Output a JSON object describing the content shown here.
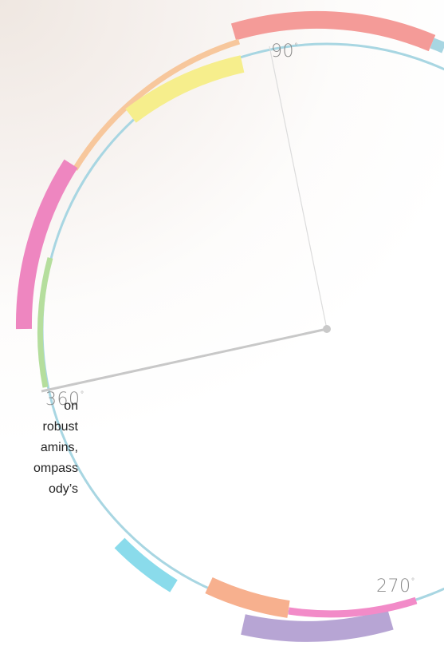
{
  "labels": {
    "deg_90": "90",
    "deg_360": "360",
    "deg_270": "270",
    "degree_mark": "°"
  },
  "text_lines": [
    "on",
    "robust",
    "amins,",
    "ompass",
    "ody’s"
  ],
  "colors": {
    "ring": "#a8d6e2",
    "salmon": "#f49b98",
    "peach": "#f7c79c",
    "yellow": "#f6ee8c",
    "pink": "#ee86c0",
    "green": "#b5de9d",
    "cyan": "#8adbeb",
    "orange": "#f7b08e",
    "magenta": "#f28bc8",
    "lavender": "#b7a5d4",
    "hand": "#c8c8c8",
    "hand_light": "#dcdcdc",
    "pivot": "#c9c9c9"
  }
}
